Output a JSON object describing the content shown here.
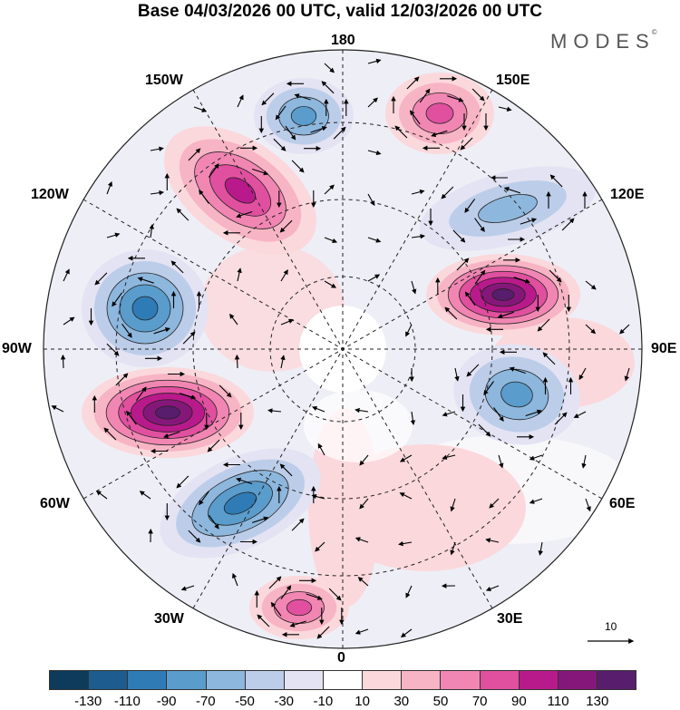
{
  "title": "Base 04/03/2026 00 UTC, valid 12/03/2026 00 UTC",
  "brand": {
    "name": "MODES",
    "mark": "©"
  },
  "longitude_labels": {
    "top": "180",
    "bottom": "0",
    "left": "90W",
    "right": "90E",
    "nw": "150W",
    "ne": "150E",
    "wnw": "120W",
    "ene": "120E",
    "wsw": "60W",
    "ese": "60E",
    "sw": "30W",
    "se": "30E"
  },
  "reference_vector": {
    "label": "10"
  },
  "colorbar": {
    "colors": [
      "#0e3b5c",
      "#1c5c8e",
      "#2f7bb5",
      "#5a9ccc",
      "#8db7dd",
      "#bccde9",
      "#e3e3f3",
      "#ffffff",
      "#fbd8dc",
      "#f7b4c4",
      "#f186b3",
      "#e0509f",
      "#b91a8b",
      "#86177a",
      "#581d6c"
    ],
    "ticks": [
      "-130",
      "-110",
      "-90",
      "-70",
      "-50",
      "-30",
      "-10",
      "10",
      "30",
      "50",
      "70",
      "90",
      "110",
      "130"
    ]
  },
  "anomaly_centers": [
    {
      "name": "low-aleutian",
      "value": -60
    },
    {
      "name": "high-alaska",
      "value": 80
    },
    {
      "name": "high-bering",
      "value": 70
    },
    {
      "name": "low-east-siberia",
      "value": -50
    },
    {
      "name": "high-central-siberia",
      "value": 115
    },
    {
      "name": "low-west-siberia",
      "value": -70
    },
    {
      "name": "low-canada",
      "value": -80
    },
    {
      "name": "high-atlantic",
      "value": 120
    },
    {
      "name": "low-north-atlantic",
      "value": -80
    },
    {
      "name": "high-africa",
      "value": 60
    }
  ]
}
